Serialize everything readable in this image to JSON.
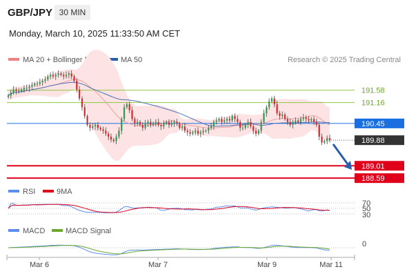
{
  "header": {
    "symbol": "GBP/JPY",
    "timeframe": "30 MIN",
    "datetime": "Monday, March 10, 2025 11:33:50 AM CET"
  },
  "chart_data": [
    {
      "type": "candlestick",
      "title": "GBP/JPY",
      "legend": [
        {
          "name": "MA 20 + Bollinger Bands",
          "color": "#f08080"
        },
        {
          "name": "MA 50",
          "color": "#2a5caa"
        }
      ],
      "credit": "Research © 2025 Trading Central",
      "x_tick_labels": [
        "Mar 6",
        "Mar 7",
        "Mar 9",
        "Mar 11"
      ],
      "ylim": [
        188.5,
        192.3
      ],
      "levels": [
        {
          "value": 191.58,
          "label": "191.58",
          "kind": "resistance",
          "color": "#8dc63f"
        },
        {
          "value": 191.16,
          "label": "191.16",
          "kind": "resistance",
          "color": "#8dc63f"
        },
        {
          "value": 190.45,
          "label": "190.45",
          "kind": "pivot",
          "color": "#1a6fe0"
        },
        {
          "value": 189.88,
          "label": "189.88",
          "kind": "last",
          "color": "#333333"
        },
        {
          "value": 189.01,
          "label": "189.01",
          "kind": "support",
          "color": "#e0001b"
        },
        {
          "value": 188.59,
          "label": "188.59",
          "kind": "support",
          "color": "#e0001b"
        }
      ],
      "close": [
        191.4,
        191.5,
        191.6,
        191.55,
        191.55,
        191.6,
        191.65,
        191.65,
        191.7,
        191.75,
        191.8,
        191.8,
        191.85,
        191.9,
        191.95,
        192.05,
        192.1,
        192.05,
        192.1,
        192.15,
        192.1,
        192.05,
        192.1,
        192.15,
        192.05,
        191.9,
        191.6,
        191.3,
        191.0,
        190.7,
        190.4,
        190.3,
        190.35,
        190.4,
        190.3,
        190.25,
        190.2,
        190.1,
        190.0,
        189.9,
        189.85,
        190.0,
        190.2,
        190.6,
        191.0,
        191.1,
        190.9,
        190.6,
        190.45,
        190.5,
        190.4,
        190.3,
        190.45,
        190.5,
        190.4,
        190.45,
        190.5,
        190.4,
        190.35,
        190.45,
        190.5,
        190.4,
        190.45,
        190.5,
        190.45,
        190.3,
        190.35,
        190.2,
        190.15,
        190.1,
        190.15,
        190.2,
        190.1,
        190.15,
        190.2,
        190.2,
        190.3,
        190.35,
        190.5,
        190.55,
        190.6,
        190.5,
        190.55,
        190.6,
        190.55,
        190.7,
        190.6,
        190.5,
        190.3,
        190.3,
        190.4,
        190.5,
        190.35,
        190.2,
        190.1,
        190.2,
        190.5,
        190.8,
        191.0,
        191.2,
        191.3,
        191.1,
        190.8,
        190.7,
        190.75,
        190.6,
        190.5,
        190.4,
        190.5,
        190.55,
        190.5,
        190.6,
        190.65,
        190.6,
        190.55,
        190.6,
        190.5,
        190.4,
        190.0,
        189.8,
        189.85,
        189.95,
        189.88
      ],
      "panels": [
        {
          "name": "RSI",
          "legend": [
            {
              "name": "RSI",
              "color": "#5b8def"
            },
            {
              "name": "9MA",
              "color": "#e0001b"
            }
          ],
          "y_tick_labels": [
            "70",
            "50",
            "30"
          ]
        },
        {
          "name": "MACD",
          "legend": [
            {
              "name": "MACD",
              "color": "#5b8def"
            },
            {
              "name": "MACD Signal",
              "color": "#6aa82e"
            }
          ],
          "y_tick_labels": [
            "0"
          ]
        }
      ]
    }
  ]
}
